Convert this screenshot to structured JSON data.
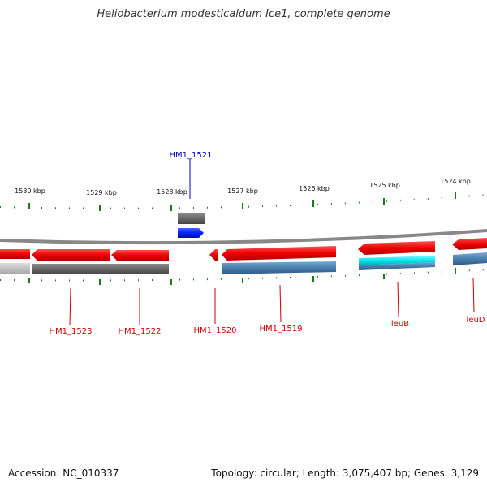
{
  "title": "Heliobacterium modesticaldum Ice1, complete genome",
  "footer": {
    "accession": "Accession: NC_010337",
    "stats": "Topology: circular; Length: 3,075,407 bp; Genes: 3,129"
  },
  "ticks": [
    "1530 kbp",
    "1529 kbp",
    "1528 kbp",
    "1527 kbp",
    "1526 kbp",
    "1525 kbp",
    "1524 kbp"
  ],
  "genes_below": [
    "HM1_1523",
    "HM1_1522",
    "HM1_1520",
    "HM1_1519",
    "leuB",
    "leuD"
  ],
  "gene_above": "HM1_1521",
  "colors": {
    "gene": "#e8000b",
    "label_red": "#cc0000",
    "label_blue": "#0000cc",
    "tick": "#1a7a1a",
    "backbone": "#888888",
    "cds_dark": "#666666",
    "cds_blue": "#4a7fae",
    "cds_cyan": "#00e5ee",
    "forward_gene": "#0020ff"
  }
}
